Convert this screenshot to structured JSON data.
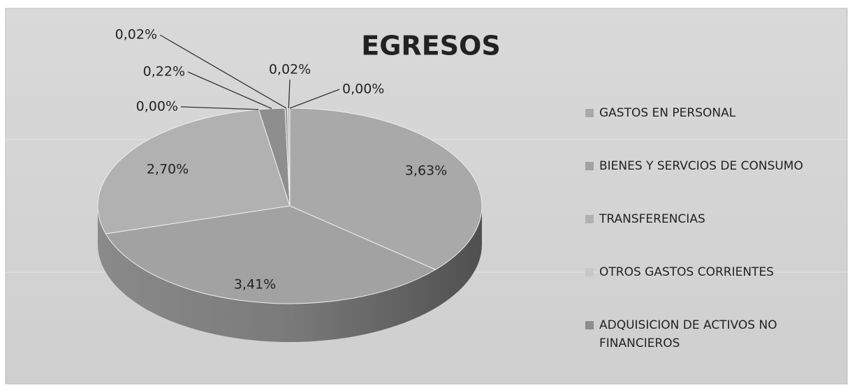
{
  "chart_data": {
    "type": "pie",
    "title": "EGRESOS",
    "categories": [
      "GASTOS EN PERSONAL",
      "BIENES Y SERVCIOS DE CONSUMO",
      "TRANSFERENCIAS",
      "OTROS GASTOS CORRIENTES",
      "ADQUISICION DE ACTIVOS NO FINANCIEROS",
      null,
      null,
      null
    ],
    "values": [
      3.63,
      3.41,
      2.7,
      0.0,
      0.22,
      0.02,
      0.02,
      0.0
    ],
    "value_labels": [
      "3,63%",
      "3,41%",
      "2,70%",
      "0,00%",
      "0,22%",
      "0,02%",
      "0,02%",
      "0,00%"
    ],
    "colors": [
      "#a9a9a9",
      "#a2a2a2",
      "#b1b1b1",
      "#c8c8c8",
      "#8e8e8e",
      "#9a9a9a",
      "#bdbdbd",
      "#d0d0d0"
    ],
    "legend": "right"
  }
}
